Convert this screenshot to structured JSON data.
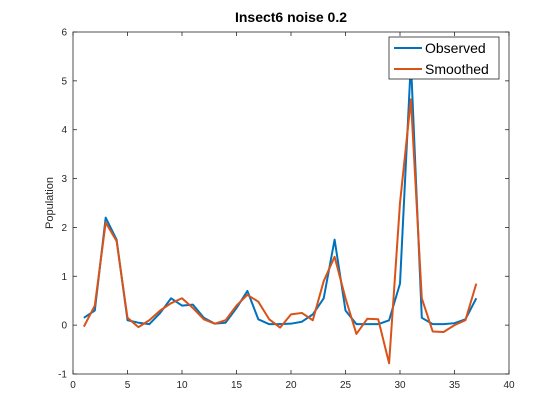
{
  "chart_data": {
    "type": "line",
    "title": "Insect6 noise 0.2",
    "xlabel": "",
    "ylabel": "Population",
    "xlim": [
      0,
      40
    ],
    "ylim": [
      -1,
      6
    ],
    "xticks": [
      0,
      5,
      10,
      15,
      20,
      25,
      30,
      35,
      40
    ],
    "yticks": [
      -1,
      0,
      1,
      2,
      3,
      4,
      5,
      6
    ],
    "grid": false,
    "legend_position": "top-right",
    "x": [
      1,
      2,
      3,
      4,
      5,
      6,
      7,
      8,
      9,
      10,
      11,
      12,
      13,
      14,
      15,
      16,
      17,
      18,
      19,
      20,
      21,
      22,
      23,
      24,
      25,
      26,
      27,
      28,
      29,
      30,
      31,
      32,
      33,
      34,
      35,
      36,
      37
    ],
    "series": [
      {
        "name": "Observed",
        "color": "#0072BD",
        "values": [
          0.15,
          0.3,
          2.2,
          1.75,
          0.1,
          0.05,
          0.02,
          0.25,
          0.55,
          0.4,
          0.42,
          0.15,
          0.03,
          0.05,
          0.35,
          0.7,
          0.12,
          0.02,
          0.02,
          0.03,
          0.07,
          0.22,
          0.55,
          1.75,
          0.3,
          0.02,
          0.02,
          0.02,
          0.1,
          0.85,
          5.4,
          0.15,
          0.02,
          0.02,
          0.04,
          0.12,
          0.55
        ]
      },
      {
        "name": "Smoothed",
        "color": "#D95319",
        "values": [
          -0.03,
          0.4,
          2.1,
          1.72,
          0.15,
          -0.04,
          0.1,
          0.3,
          0.45,
          0.55,
          0.35,
          0.12,
          0.03,
          0.1,
          0.4,
          0.62,
          0.48,
          0.12,
          -0.05,
          0.22,
          0.25,
          0.1,
          0.9,
          1.4,
          0.55,
          -0.18,
          0.13,
          0.12,
          -0.78,
          2.5,
          4.62,
          0.55,
          -0.13,
          -0.14,
          0.0,
          0.1,
          0.85
        ]
      }
    ]
  }
}
